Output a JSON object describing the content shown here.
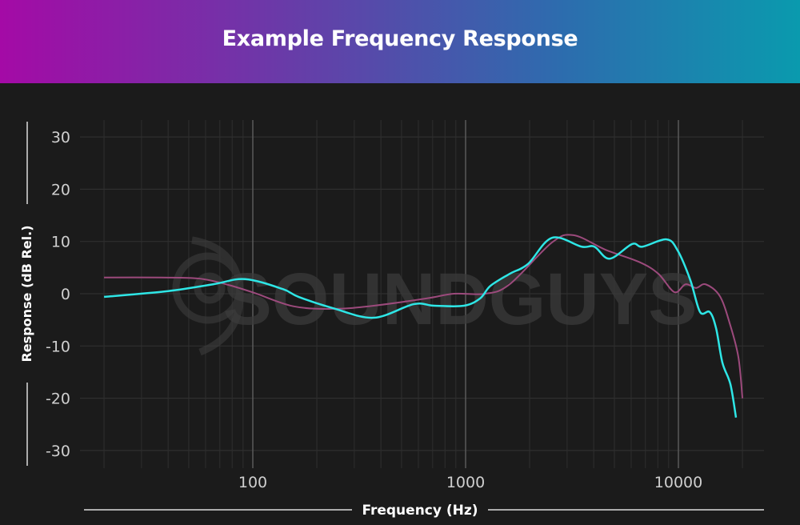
{
  "header": {
    "title": "Example Frequency Response"
  },
  "watermark": "SOUNDGUYS",
  "colors": {
    "header_start": "#a40aa6",
    "header_end": "#0a9aae",
    "background": "#1b1b1b",
    "series_a": "#2ee6e6",
    "series_b": "#9c4a7c"
  },
  "chart_data": {
    "type": "line",
    "title": "Example Frequency Response",
    "xlabel": "Frequency (Hz)",
    "ylabel": "Response (dB Rel.)",
    "xscale": "log",
    "xlim": [
      20,
      20000
    ],
    "ylim": [
      -30,
      30
    ],
    "xticks": [
      100,
      1000,
      10000
    ],
    "xtick_labels": [
      "100",
      "1000",
      "10000"
    ],
    "yticks": [
      30,
      20,
      10,
      0,
      -10,
      -20,
      -30
    ],
    "ytick_labels": [
      "30",
      "20",
      "10",
      "0",
      "-10",
      "-20",
      "-30"
    ],
    "grid": true,
    "legend": "none",
    "series": [
      {
        "color": "#9c4a7c",
        "points": [
          [
            20,
            3.1
          ],
          [
            37,
            3.1
          ],
          [
            56,
            2.9
          ],
          [
            75,
            1.8
          ],
          [
            101,
            0.2
          ],
          [
            155,
            -2.4
          ],
          [
            240,
            -2.9
          ],
          [
            370,
            -2.3
          ],
          [
            655,
            -0.9
          ],
          [
            880,
            0
          ],
          [
            1240,
            0
          ],
          [
            1610,
            1.8
          ],
          [
            2545,
            9.8
          ],
          [
            3220,
            11.2
          ],
          [
            4550,
            8.4
          ],
          [
            6600,
            6.0
          ],
          [
            8060,
            3.8
          ],
          [
            9580,
            0.3
          ],
          [
            10800,
            1.8
          ],
          [
            12100,
            1.1
          ],
          [
            13430,
            1.8
          ],
          [
            15680,
            -0.5
          ],
          [
            17550,
            -6.1
          ],
          [
            19150,
            -12.2
          ],
          [
            20000,
            -20
          ]
        ]
      },
      {
        "color": "#2ee6e6",
        "points": [
          [
            20,
            -0.6
          ],
          [
            40,
            0.5
          ],
          [
            65,
            1.8
          ],
          [
            92,
            2.8
          ],
          [
            138,
            0.9
          ],
          [
            164,
            -0.6
          ],
          [
            240,
            -2.8
          ],
          [
            370,
            -4.6
          ],
          [
            570,
            -2.0
          ],
          [
            713,
            -2.3
          ],
          [
            982,
            -2.3
          ],
          [
            1170,
            -0.9
          ],
          [
            1308,
            1.5
          ],
          [
            1610,
            3.8
          ],
          [
            1965,
            5.7
          ],
          [
            2545,
            10.7
          ],
          [
            3510,
            9.0
          ],
          [
            4030,
            9.0
          ],
          [
            4750,
            6.7
          ],
          [
            6060,
            9.5
          ],
          [
            6780,
            9.0
          ],
          [
            8790,
            10.4
          ],
          [
            9910,
            8.3
          ],
          [
            11380,
            2.6
          ],
          [
            12640,
            -3.5
          ],
          [
            14030,
            -3.5
          ],
          [
            15030,
            -6.6
          ],
          [
            16100,
            -13.2
          ],
          [
            17550,
            -17.3
          ],
          [
            18650,
            -23.7
          ]
        ]
      }
    ]
  }
}
